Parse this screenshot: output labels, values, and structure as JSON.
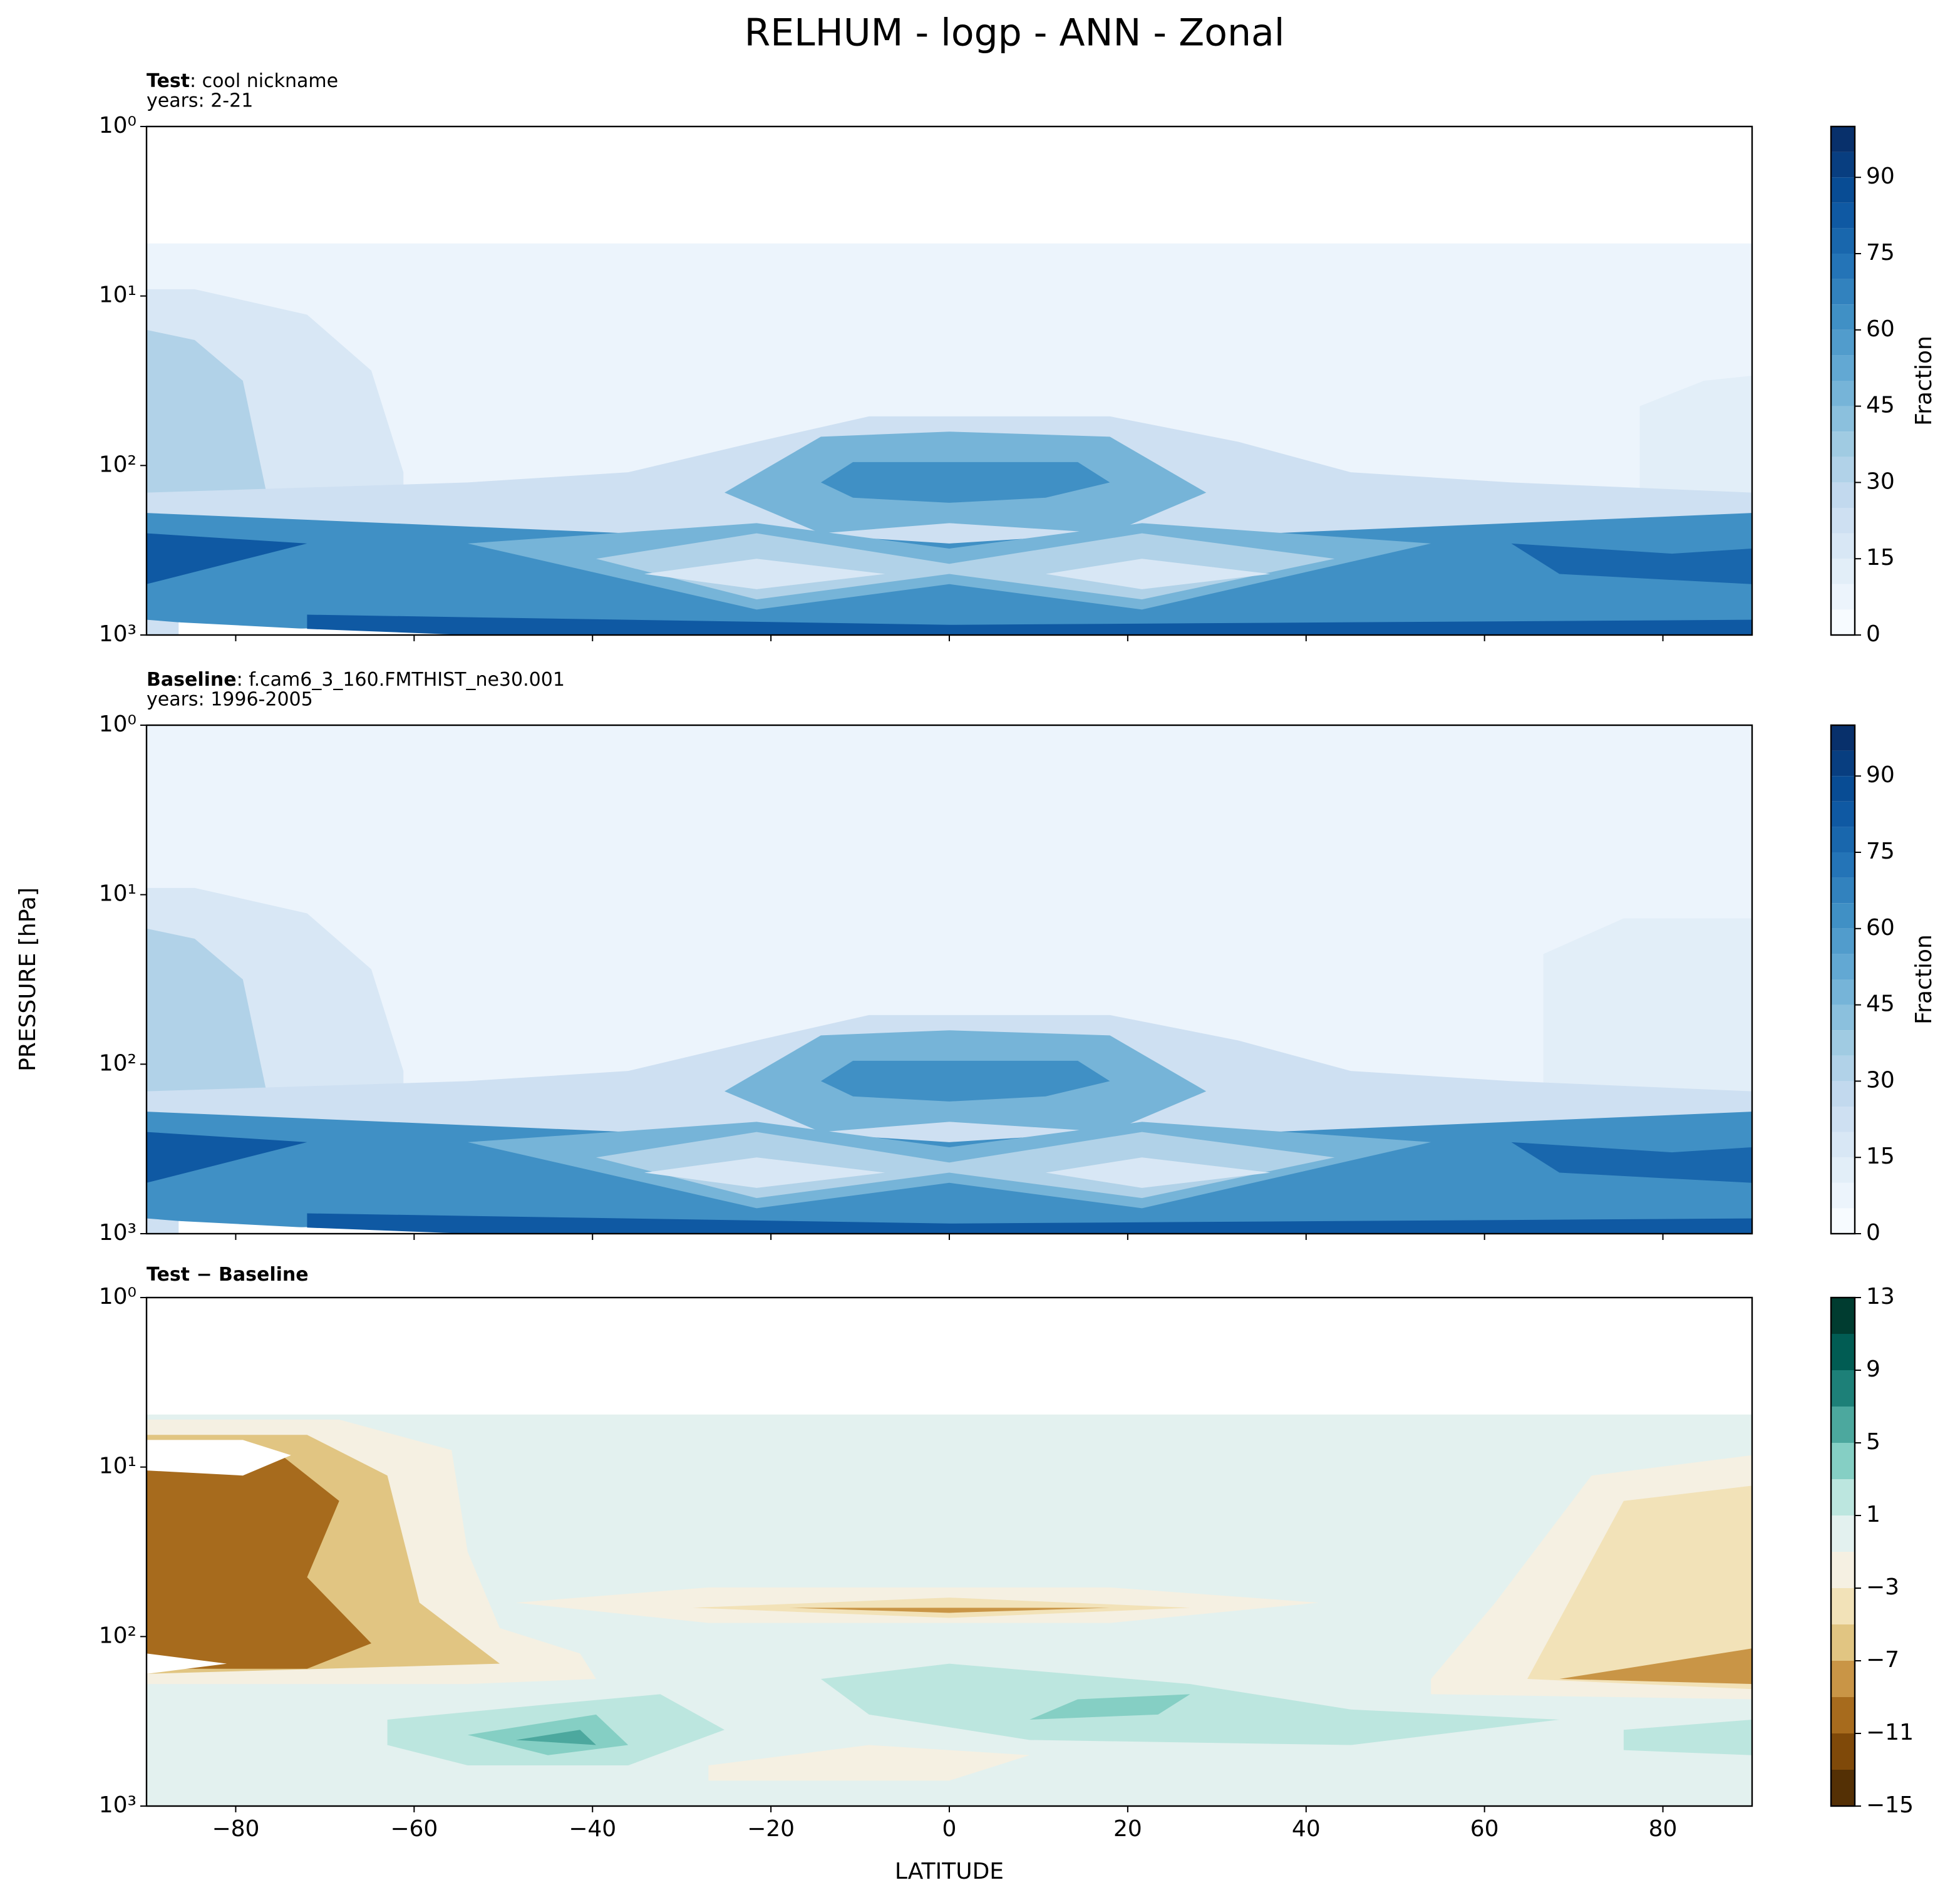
{
  "title": "RELHUM - logp - ANN - Zonal",
  "chart_data": [
    {
      "type": "contour",
      "case_label": "Test",
      "case_name": ": cool nickname",
      "years": "years: 2-21",
      "ylim": [
        1000,
        1
      ],
      "log_y": true,
      "yticks": [
        {
          "value": 1,
          "label": "10⁰"
        },
        {
          "value": 10,
          "label": "10¹"
        },
        {
          "value": 100,
          "label": "10²"
        },
        {
          "value": 1000,
          "label": "10³"
        }
      ],
      "xlim": [
        -90,
        90
      ],
      "colormap": [
        "#f7fbff",
        "#deebf7",
        "#c6dbef",
        "#9ecae1",
        "#6baed6",
        "#4292c6",
        "#2171b5",
        "#08519c",
        "#08306b"
      ],
      "levels": [
        0,
        5,
        10,
        15,
        20,
        25,
        30,
        35,
        40,
        45,
        50,
        55,
        60,
        65,
        70,
        75,
        80,
        85,
        90,
        95,
        100
      ],
      "cbar_ticks": [
        0,
        15,
        30,
        45,
        60,
        75,
        90
      ],
      "cbar_label": "Fraction"
    },
    {
      "type": "contour",
      "case_label": "Baseline",
      "case_name": ": f.cam6_3_160.FMTHIST_ne30.001",
      "years": "years: 1996-2005",
      "ylim": [
        1000,
        1
      ],
      "log_y": true,
      "yticks": [
        {
          "value": 1,
          "label": "10⁰"
        },
        {
          "value": 10,
          "label": "10¹"
        },
        {
          "value": 100,
          "label": "10²"
        },
        {
          "value": 1000,
          "label": "10³"
        }
      ],
      "xlim": [
        -90,
        90
      ],
      "y_label": "PRESSURE [hPa]",
      "colormap": [
        "#f7fbff",
        "#deebf7",
        "#c6dbef",
        "#9ecae1",
        "#6baed6",
        "#4292c6",
        "#2171b5",
        "#08519c",
        "#08306b"
      ],
      "levels": [
        0,
        5,
        10,
        15,
        20,
        25,
        30,
        35,
        40,
        45,
        50,
        55,
        60,
        65,
        70,
        75,
        80,
        85,
        90,
        95,
        100
      ],
      "cbar_ticks": [
        0,
        15,
        30,
        45,
        60,
        75,
        90
      ],
      "cbar_label": "Fraction"
    },
    {
      "type": "contour_diff",
      "case_label": "Test − Baseline",
      "ylim": [
        1000,
        1
      ],
      "log_y": true,
      "yticks": [
        {
          "value": 1,
          "label": "10⁰"
        },
        {
          "value": 10,
          "label": "10¹"
        },
        {
          "value": 100,
          "label": "10²"
        },
        {
          "value": 1000,
          "label": "10³"
        }
      ],
      "xlim": [
        -90,
        90
      ],
      "xticks": [
        {
          "value": -80,
          "label": "−80"
        },
        {
          "value": -60,
          "label": "−60"
        },
        {
          "value": -40,
          "label": "−40"
        },
        {
          "value": -20,
          "label": "−20"
        },
        0,
        20,
        40,
        60,
        80
      ],
      "x_label": "LATITUDE",
      "colormap": [
        "#543005",
        "#8c510a",
        "#bf812d",
        "#dfc27d",
        "#f6e8c3",
        "#f5f5f5",
        "#c7eae5",
        "#80cdc1",
        "#35978f",
        "#01665e",
        "#003c30"
      ],
      "levels": [
        -15,
        -13,
        -11,
        -9,
        -7,
        -5,
        -3,
        -1,
        1,
        3,
        5,
        7,
        9,
        11,
        13
      ],
      "cbar_ticks": [
        {
          "value": -15,
          "label": "−15"
        },
        {
          "value": -11,
          "label": "−11"
        },
        {
          "value": -7,
          "label": "−7"
        },
        {
          "value": -3,
          "label": "−3"
        },
        1,
        5,
        9,
        13
      ]
    }
  ]
}
